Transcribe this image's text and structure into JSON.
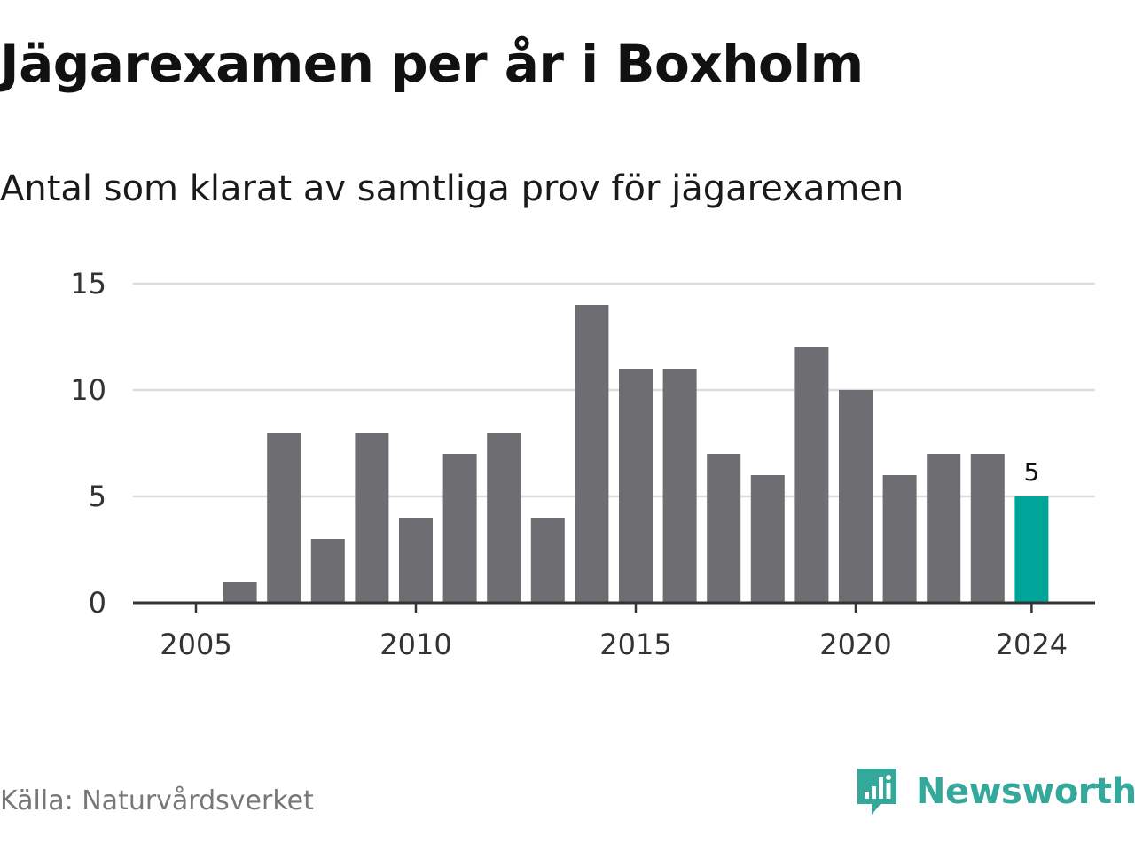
{
  "title": "Jägarexamen per år i Boxholm",
  "subtitle": "Antal som klarat av samtliga prov för jägarexamen",
  "source": "Källa: Naturvårdsverket",
  "brand": {
    "name": "Newsworthy",
    "icon": "newsworthy-logo-icon",
    "color": "#34a89a"
  },
  "chart_data": {
    "type": "bar",
    "title": "Jägarexamen per år i Boxholm",
    "subtitle": "Antal som klarat av samtliga prov för jägarexamen",
    "categories": [
      2005,
      2006,
      2007,
      2008,
      2009,
      2010,
      2011,
      2012,
      2013,
      2014,
      2015,
      2016,
      2017,
      2018,
      2019,
      2020,
      2021,
      2022,
      2023,
      2024
    ],
    "values": [
      0,
      1,
      8,
      3,
      8,
      4,
      7,
      8,
      4,
      14,
      11,
      11,
      7,
      6,
      12,
      10,
      6,
      7,
      7,
      5
    ],
    "x_ticks": [
      2005,
      2010,
      2015,
      2020,
      2024
    ],
    "y_ticks": [
      0,
      5,
      10,
      15
    ],
    "ylim": [
      0,
      15
    ],
    "grid": true,
    "bar_color": "#6e6d72",
    "highlight_color": "#00a59a",
    "highlight_category": 2024,
    "data_labels": [
      {
        "category": 2024,
        "text": "5"
      }
    ]
  }
}
